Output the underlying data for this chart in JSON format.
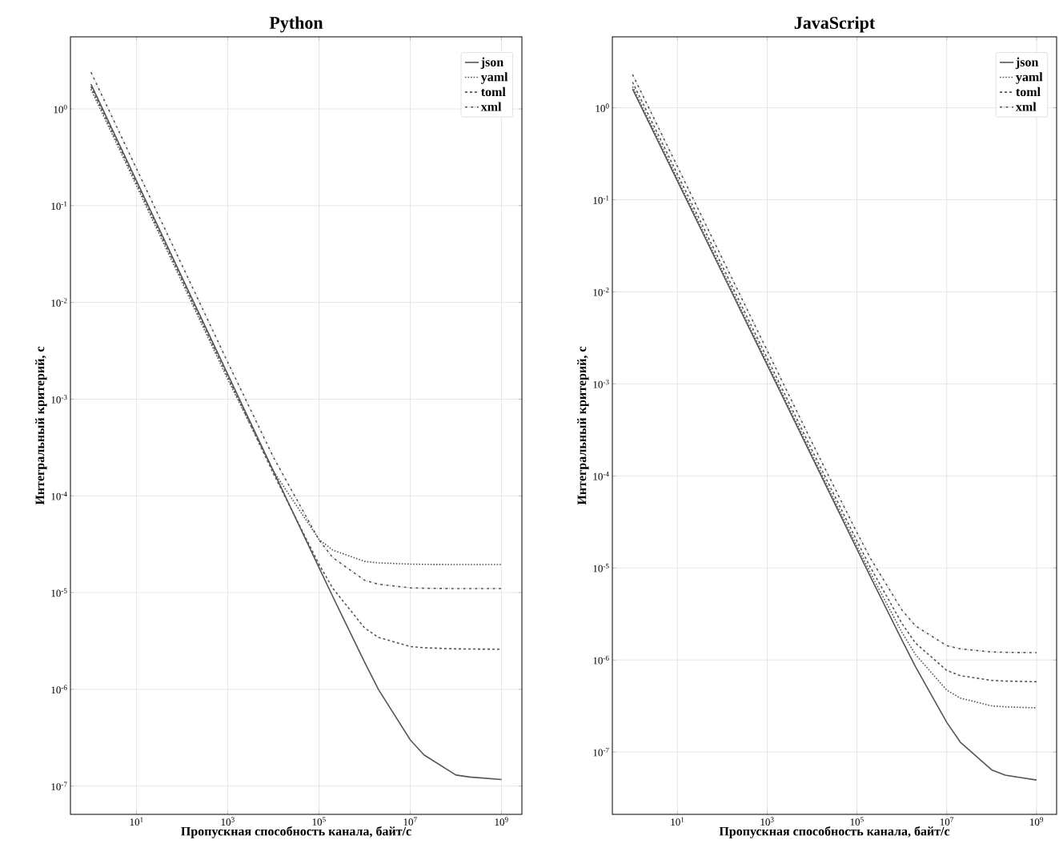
{
  "chart_data": [
    {
      "type": "line",
      "title": "Python",
      "xlabel": "Пропускная способность канала, байт/с",
      "ylabel": "Интегральный критерий, с",
      "log": "xy",
      "grid": true,
      "legend": "top right",
      "x": [
        1,
        10,
        100,
        1000,
        10000,
        100000,
        200000,
        1000000,
        2000000,
        10000000,
        20000000,
        100000000,
        200000000,
        1000000000
      ],
      "series": [
        {
          "name": "json",
          "color": "#555555",
          "line_style": "solid",
          "values": [
            1.8,
            0.18,
            0.018,
            0.0018,
            0.00018,
            1.81e-05,
            9.1e-06,
            1.9e-06,
            1e-06,
            3e-07,
            2.1e-07,
            1.3e-07,
            1.24e-07,
            1.17e-07
          ]
        },
        {
          "name": "yaml",
          "color": "#555555",
          "line_style": "dotted",
          "values": [
            1.6,
            0.16,
            0.016,
            0.0016,
            0.00018,
            3.55e-05,
            2.75e-05,
            2.1e-05,
            2.03e-05,
            1.97e-05,
            1.96e-05,
            1.95e-05,
            1.95e-05,
            1.95e-05
          ]
        },
        {
          "name": "toml",
          "color": "#555555",
          "line_style": "dashed",
          "values": [
            1.7,
            0.17,
            0.017,
            0.0017,
            0.00017,
            1.96e-05,
            1.11e-05,
            4.3e-06,
            3.45e-06,
            2.77e-06,
            2.69e-06,
            2.62e-06,
            2.61e-06,
            2.6e-06
          ]
        },
        {
          "name": "xml",
          "color": "#555555",
          "line_style": "dashdot",
          "values": [
            2.4,
            0.24,
            0.024,
            0.0024,
            0.000251,
            3.5e-05,
            2.3e-05,
            1.34e-05,
            1.22e-05,
            1.12e-05,
            1.11e-05,
            1.1e-05,
            1.1e-05,
            1.1e-05
          ]
        }
      ],
      "xlim": [
        0.355,
        2800000000.0
      ],
      "ylim": [
        5.1e-08,
        5.56
      ],
      "xticks": [
        {
          "value": 10,
          "label": "10$^{1}$"
        },
        {
          "value": 1000,
          "label": "10$^{3}$"
        },
        {
          "value": 100000,
          "label": "10$^{5}$"
        },
        {
          "value": 10000000,
          "label": "10$^{7}$"
        },
        {
          "value": 1000000000,
          "label": "10$^{9}$"
        }
      ],
      "yticks": [
        {
          "value": 1,
          "label": "10$^{0}$"
        },
        {
          "value": 0.1,
          "label": "10$^{-1}$"
        },
        {
          "value": 0.01,
          "label": "10$^{-2}$"
        },
        {
          "value": 0.001,
          "label": "10$^{-3}$"
        },
        {
          "value": 0.0001,
          "label": "10$^{-4}$"
        },
        {
          "value": 1e-05,
          "label": "10$^{-5}$"
        },
        {
          "value": 1e-06,
          "label": "10$^{-6}$"
        },
        {
          "value": 1e-07,
          "label": "10$^{-7}$"
        }
      ]
    },
    {
      "type": "line",
      "title": "JavaScript",
      "xlabel": "Пропускная способность канала, байт/с",
      "ylabel": "Интегральный критерий, с",
      "log": "xy",
      "grid": true,
      "legend": "top right",
      "x": [
        1,
        10,
        100,
        1000,
        10000,
        100000,
        200000,
        1000000,
        2000000,
        10000000,
        20000000,
        100000000,
        200000000,
        1000000000
      ],
      "series": [
        {
          "name": "json",
          "color": "#555555",
          "line_style": "solid",
          "values": [
            1.6,
            0.16,
            0.016,
            0.0016,
            0.00016,
            1.6e-05,
            8e-06,
            1.65e-06,
            8.5e-07,
            2.1e-07,
            1.28e-07,
            6.4e-08,
            5.6e-08,
            4.96e-08
          ]
        },
        {
          "name": "yaml",
          "color": "#555555",
          "line_style": "dotted",
          "values": [
            1.7,
            0.17,
            0.017,
            0.0017,
            0.00017,
            1.73e-05,
            8.8e-06,
            2e-06,
            1.15e-06,
            4.7e-07,
            3.85e-07,
            3.17e-07,
            3.09e-07,
            3.02e-07
          ]
        },
        {
          "name": "toml",
          "color": "#555555",
          "line_style": "dashed",
          "values": [
            1.9,
            0.19,
            0.019,
            0.0019,
            0.00019,
            1.96e-05,
            1.01e-05,
            2.5e-06,
            1.53e-06,
            7.7e-07,
            6.75e-07,
            6e-07,
            5.9e-07,
            5.8e-07
          ]
        },
        {
          "name": "xml",
          "color": "#555555",
          "line_style": "dashdot",
          "values": [
            2.3,
            0.23,
            0.023,
            0.0023,
            0.00023,
            2.42e-05,
            1.27e-05,
            3.5e-06,
            2.35e-06,
            1.43e-06,
            1.32e-06,
            1.22e-06,
            1.21e-06,
            1.2e-06
          ]
        }
      ],
      "xlim": [
        0.355,
        2800000000.0
      ],
      "ylim": [
        2.1e-08,
        5.9
      ],
      "xticks": [
        {
          "value": 10,
          "label": "10$^{1}$"
        },
        {
          "value": 1000,
          "label": "10$^{3}$"
        },
        {
          "value": 100000,
          "label": "10$^{5}$"
        },
        {
          "value": 10000000,
          "label": "10$^{7}$"
        },
        {
          "value": 1000000000,
          "label": "10$^{9}$"
        }
      ],
      "yticks": [
        {
          "value": 1,
          "label": "10$^{0}$"
        },
        {
          "value": 0.1,
          "label": "10$^{-1}$"
        },
        {
          "value": 0.01,
          "label": "10$^{-2}$"
        },
        {
          "value": 0.001,
          "label": "10$^{-3}$"
        },
        {
          "value": 0.0001,
          "label": "10$^{-4}$"
        },
        {
          "value": 1e-05,
          "label": "10$^{-5}$"
        },
        {
          "value": 1e-06,
          "label": "10$^{-6}$"
        },
        {
          "value": 1e-07,
          "label": "10$^{-7}$"
        }
      ]
    }
  ]
}
